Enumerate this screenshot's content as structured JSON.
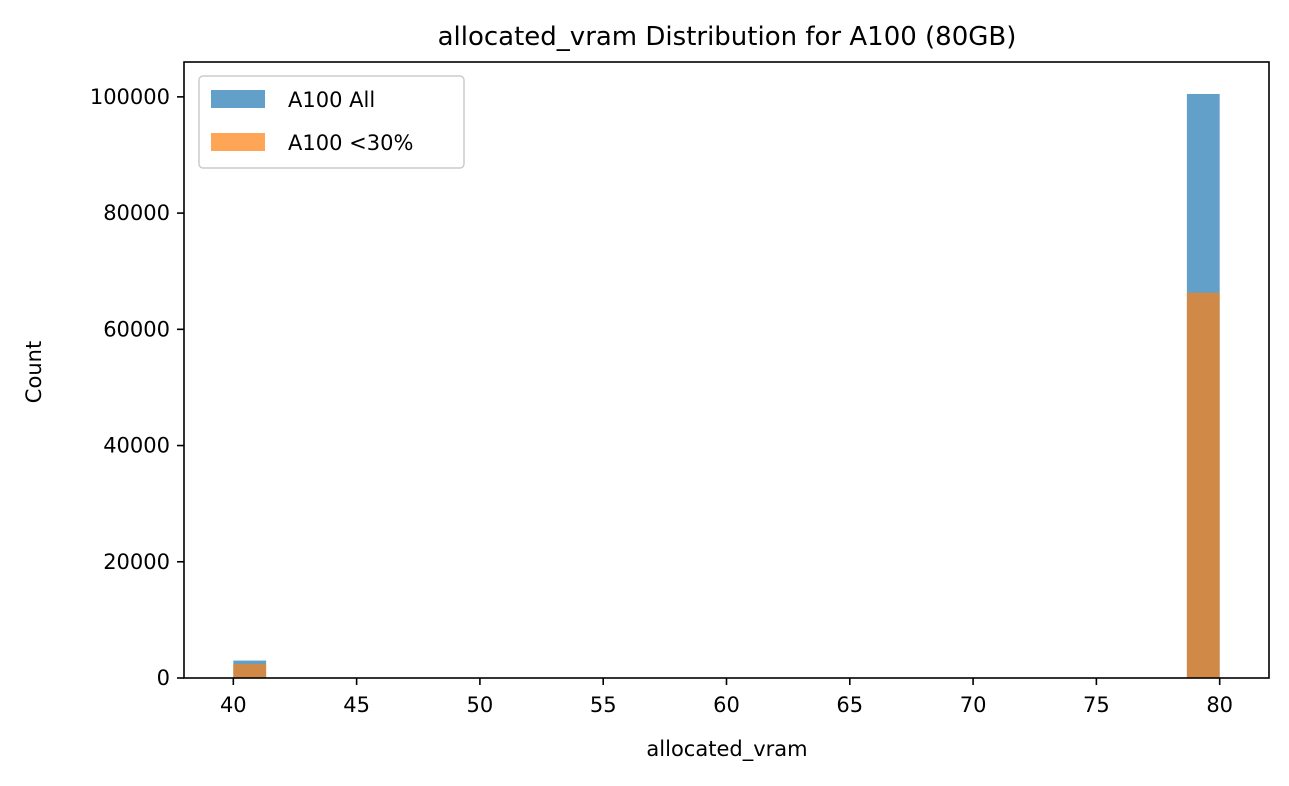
{
  "chart_data": {
    "type": "bar",
    "title": "allocated_vram Distribution for A100 (80GB)",
    "xlabel": "allocated_vram",
    "ylabel": "Count",
    "xlim": [
      38,
      82
    ],
    "ylim": [
      0,
      106000
    ],
    "x_ticks": [
      40,
      45,
      50,
      55,
      60,
      65,
      70,
      75,
      80
    ],
    "y_ticks": [
      0,
      20000,
      40000,
      60000,
      80000,
      100000
    ],
    "grid": false,
    "legend_position": "upper-left",
    "series": [
      {
        "name": "A100 All",
        "color": "#1f77b4",
        "bins": [
          {
            "x0": 40.0,
            "x1": 41.33,
            "value": 3000
          },
          {
            "x0": 78.67,
            "x1": 80.0,
            "value": 100500
          }
        ]
      },
      {
        "name": "A100 <30%",
        "color": "#ff7f0e",
        "bins": [
          {
            "x0": 40.0,
            "x1": 41.33,
            "value": 2400
          },
          {
            "x0": 78.67,
            "x1": 80.0,
            "value": 66300
          }
        ]
      }
    ]
  }
}
